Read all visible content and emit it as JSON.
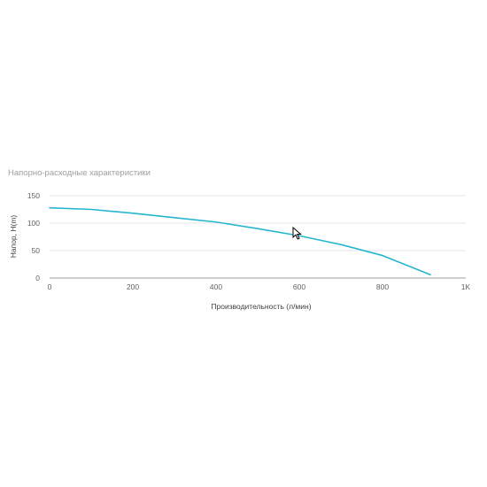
{
  "chart_data": {
    "type": "line",
    "title": "Напорно-расходные характеристики",
    "xlabel": "Производительность (л/мин)",
    "ylabel": "Напор, H(m)",
    "xlim": [
      0,
      1000
    ],
    "ylim": [
      0,
      150
    ],
    "x_ticks": [
      {
        "value": 0,
        "label": "0"
      },
      {
        "value": 200,
        "label": "200"
      },
      {
        "value": 400,
        "label": "400"
      },
      {
        "value": 600,
        "label": "600"
      },
      {
        "value": 800,
        "label": "800"
      },
      {
        "value": 1000,
        "label": "1K"
      }
    ],
    "y_ticks": [
      {
        "value": 0,
        "label": "0"
      },
      {
        "value": 50,
        "label": "50"
      },
      {
        "value": 100,
        "label": "100"
      },
      {
        "value": 150,
        "label": "150"
      }
    ],
    "grid": true,
    "legend": "none",
    "series": [
      {
        "color": "#26b6cf",
        "points": [
          {
            "x": 0,
            "y": 128
          },
          {
            "x": 100,
            "y": 125
          },
          {
            "x": 200,
            "y": 118
          },
          {
            "x": 300,
            "y": 110
          },
          {
            "x": 400,
            "y": 102
          },
          {
            "x": 500,
            "y": 90
          },
          {
            "x": 600,
            "y": 77
          },
          {
            "x": 700,
            "y": 61
          },
          {
            "x": 800,
            "y": 41
          },
          {
            "x": 915,
            "y": 6
          }
        ]
      }
    ]
  }
}
